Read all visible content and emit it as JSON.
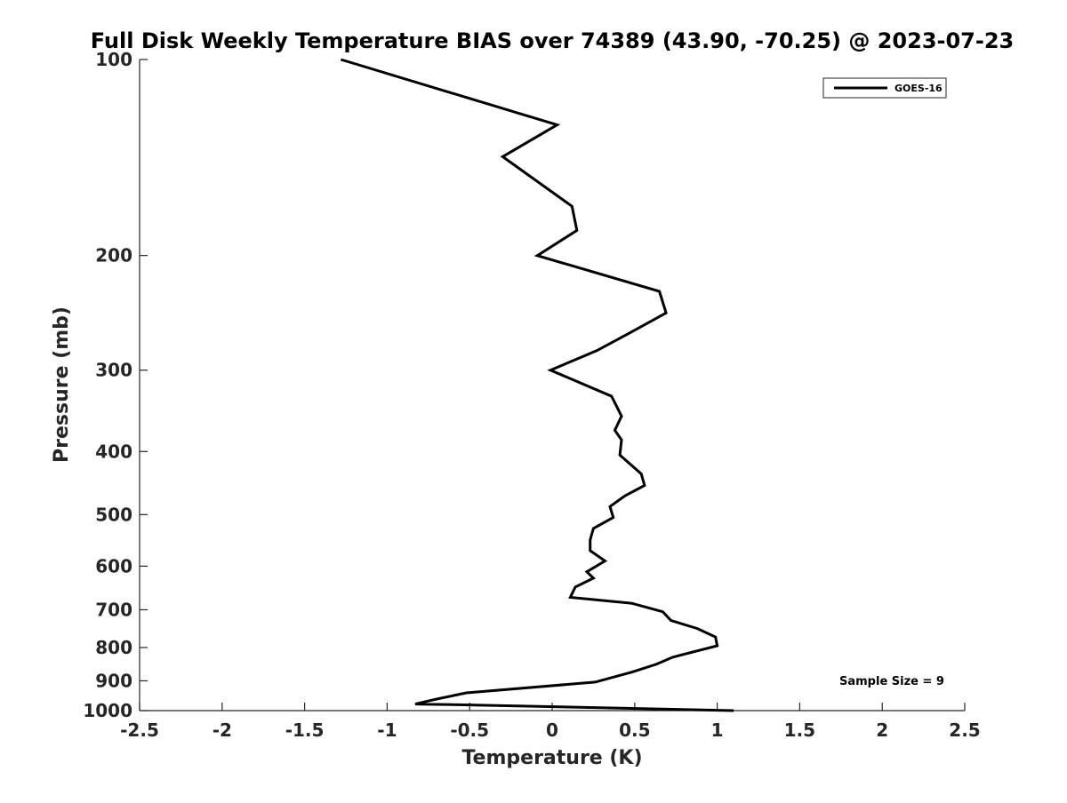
{
  "chart_data": {
    "type": "line",
    "title": "Full Disk Weekly Temperature BIAS over 74389 (43.90, -70.25) @ 2023-07-23",
    "xlabel": "Temperature (K)",
    "ylabel": "Pressure (mb)",
    "xlim": [
      -2.5,
      2.5
    ],
    "ylim": [
      100,
      1000
    ],
    "y_scale": "log",
    "y_reversed": true,
    "x_ticks": [
      -2.5,
      -2,
      -1.5,
      -1,
      -0.5,
      0,
      0.5,
      1,
      1.5,
      2,
      2.5
    ],
    "x_tick_labels": [
      "-2.5",
      "-2",
      "-1.5",
      "-1",
      "-0.5",
      "0",
      "0.5",
      "1",
      "1.5",
      "2",
      "2.5"
    ],
    "y_ticks": [
      100,
      200,
      300,
      400,
      500,
      600,
      700,
      800,
      900,
      1000
    ],
    "y_tick_labels": [
      "100",
      "200",
      "300",
      "400",
      "500",
      "600",
      "700",
      "800",
      "900",
      "1000"
    ],
    "grid": false,
    "legend_position": "top-right",
    "annotation": "Sample Size = 9",
    "series": [
      {
        "name": "GOES-16",
        "color": "#000000",
        "points": [
          {
            "x": -1.28,
            "y": 100
          },
          {
            "x": 0.03,
            "y": 126
          },
          {
            "x": -0.3,
            "y": 141
          },
          {
            "x": 0.12,
            "y": 168
          },
          {
            "x": 0.15,
            "y": 183
          },
          {
            "x": -0.09,
            "y": 200
          },
          {
            "x": 0.65,
            "y": 227
          },
          {
            "x": 0.69,
            "y": 245
          },
          {
            "x": 0.47,
            "y": 263
          },
          {
            "x": 0.27,
            "y": 280
          },
          {
            "x": -0.01,
            "y": 300
          },
          {
            "x": 0.36,
            "y": 329
          },
          {
            "x": 0.42,
            "y": 353
          },
          {
            "x": 0.38,
            "y": 371
          },
          {
            "x": 0.42,
            "y": 384
          },
          {
            "x": 0.41,
            "y": 405
          },
          {
            "x": 0.54,
            "y": 433
          },
          {
            "x": 0.56,
            "y": 451
          },
          {
            "x": 0.44,
            "y": 468
          },
          {
            "x": 0.35,
            "y": 486
          },
          {
            "x": 0.37,
            "y": 505
          },
          {
            "x": 0.25,
            "y": 525
          },
          {
            "x": 0.23,
            "y": 547
          },
          {
            "x": 0.23,
            "y": 568
          },
          {
            "x": 0.32,
            "y": 589
          },
          {
            "x": 0.21,
            "y": 612
          },
          {
            "x": 0.25,
            "y": 626
          },
          {
            "x": 0.14,
            "y": 646
          },
          {
            "x": 0.11,
            "y": 670
          },
          {
            "x": 0.48,
            "y": 684
          },
          {
            "x": 0.67,
            "y": 705
          },
          {
            "x": 0.72,
            "y": 727
          },
          {
            "x": 0.88,
            "y": 748
          },
          {
            "x": 0.99,
            "y": 771
          },
          {
            "x": 1.0,
            "y": 795
          },
          {
            "x": 0.73,
            "y": 828
          },
          {
            "x": 0.63,
            "y": 849
          },
          {
            "x": 0.48,
            "y": 873
          },
          {
            "x": 0.26,
            "y": 904
          },
          {
            "x": -0.52,
            "y": 939
          },
          {
            "x": -0.7,
            "y": 960
          },
          {
            "x": -0.83,
            "y": 977
          },
          {
            "x": -0.5,
            "y": 980
          },
          {
            "x": 1.1,
            "y": 1000
          }
        ]
      }
    ]
  }
}
